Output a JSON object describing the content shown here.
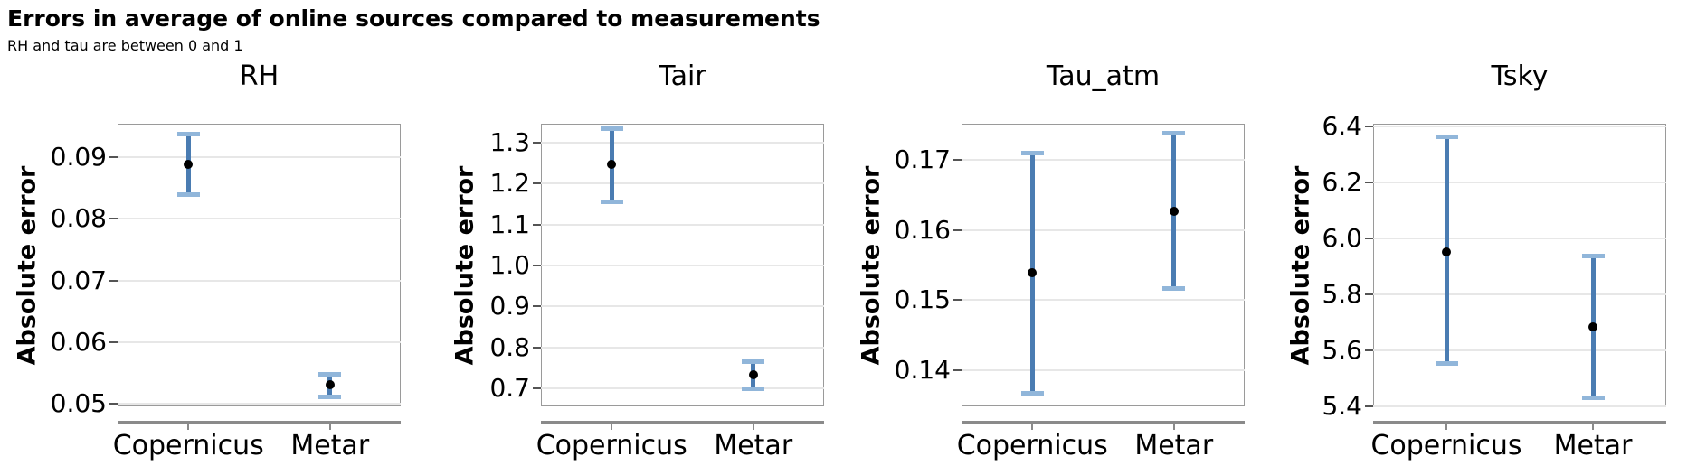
{
  "figure": {
    "title": "Errors in average of online sources compared to measurements",
    "subtitle": "RH and tau are between 0 and 1"
  },
  "style": {
    "errorbar_color": "#4a7cb2",
    "cap_color": "#91b6da",
    "point_color": "#000000",
    "grid_color": "#e7e7e7",
    "panel_border_color": "#9a9a9a",
    "axis_line_color": "#8a8a8a",
    "ytick_color": "#545454",
    "text_color": "#000000"
  },
  "chart_data": [
    {
      "type": "scatter",
      "title": "RH",
      "ylabel": "Absolute error",
      "xlabel": "",
      "categories": [
        "Copernicus",
        "Metar"
      ],
      "grid": true,
      "legend": "none",
      "ylim": [
        0.0496,
        0.0954
      ],
      "yticks": [
        0.05,
        0.06,
        0.07,
        0.08,
        0.09
      ],
      "ytick_labels": [
        "0.05",
        "0.06",
        "0.07",
        "0.08",
        "0.09"
      ],
      "points": [
        {
          "category": "Copernicus",
          "value": 0.0888,
          "err_low": 0.0839,
          "err_high": 0.0937
        },
        {
          "category": "Metar",
          "value": 0.0531,
          "err_low": 0.0512,
          "err_high": 0.0548
        }
      ]
    },
    {
      "type": "scatter",
      "title": "Tair",
      "ylabel": "Absolute error",
      "xlabel": "",
      "categories": [
        "Copernicus",
        "Metar"
      ],
      "grid": true,
      "legend": "none",
      "ylim": [
        0.656,
        1.346
      ],
      "yticks": [
        0.7,
        0.8,
        0.9,
        1.0,
        1.1,
        1.2,
        1.3
      ],
      "ytick_labels": [
        "0.7",
        "0.8",
        "0.9",
        "1.0",
        "1.1",
        "1.2",
        "1.3"
      ],
      "points": [
        {
          "category": "Copernicus",
          "value": 1.246,
          "err_low": 1.155,
          "err_high": 1.333
        },
        {
          "category": "Metar",
          "value": 0.733,
          "err_low": 0.7,
          "err_high": 0.766
        }
      ]
    },
    {
      "type": "scatter",
      "title": "Tau_atm",
      "ylabel": "Absolute error",
      "xlabel": "",
      "categories": [
        "Copernicus",
        "Metar"
      ],
      "grid": true,
      "legend": "none",
      "ylim": [
        0.1349,
        0.1751
      ],
      "yticks": [
        0.14,
        0.15,
        0.16,
        0.17
      ],
      "ytick_labels": [
        "0.14",
        "0.15",
        "0.16",
        "0.17"
      ],
      "points": [
        {
          "category": "Copernicus",
          "value": 0.1539,
          "err_low": 0.1368,
          "err_high": 0.1709
        },
        {
          "category": "Metar",
          "value": 0.1627,
          "err_low": 0.1516,
          "err_high": 0.1738
        }
      ]
    },
    {
      "type": "scatter",
      "title": "Tsky",
      "ylabel": "Absolute error",
      "xlabel": "",
      "categories": [
        "Copernicus",
        "Metar"
      ],
      "grid": true,
      "legend": "none",
      "ylim": [
        5.4,
        6.41
      ],
      "yticks": [
        5.4,
        5.6,
        5.8,
        6.0,
        6.2,
        6.4
      ],
      "ytick_labels": [
        "5.4",
        "5.6",
        "5.8",
        "6.0",
        "6.2",
        "6.4"
      ],
      "points": [
        {
          "category": "Copernicus",
          "value": 5.953,
          "err_low": 5.552,
          "err_high": 6.362
        },
        {
          "category": "Metar",
          "value": 5.684,
          "err_low": 5.432,
          "err_high": 5.938
        }
      ]
    }
  ]
}
